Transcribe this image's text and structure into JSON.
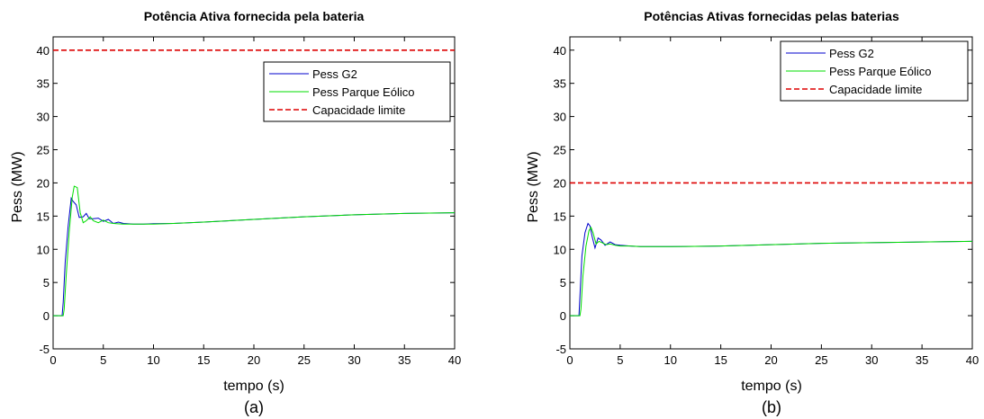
{
  "chart_data": [
    {
      "type": "line",
      "title": "Potência Ativa fornecida pela bateria",
      "xlabel": "tempo (s)",
      "ylabel": "Pess (MW)",
      "caption": "(a)",
      "xlim": [
        0,
        40
      ],
      "ylim": [
        -5,
        42
      ],
      "xticks": [
        0,
        5,
        10,
        15,
        20,
        25,
        30,
        35,
        40
      ],
      "yticks": [
        -5,
        0,
        5,
        10,
        15,
        20,
        25,
        30,
        35,
        40
      ],
      "grid": false,
      "legend_position": "top-right",
      "series": [
        {
          "name": "Pess G2",
          "color": "#0000cc",
          "style": "solid",
          "x": [
            0,
            0.9,
            1.0,
            1.2,
            1.5,
            1.8,
            2.0,
            2.3,
            2.6,
            3.0,
            3.3,
            3.6,
            4.0,
            4.5,
            5.0,
            5.5,
            6.0,
            6.5,
            7.0,
            8.0,
            9.0,
            10.0,
            12.0,
            15.0,
            20.0,
            25.0,
            30.0,
            35.0,
            40.0
          ],
          "y": [
            0,
            0,
            2,
            8,
            13.5,
            17.7,
            17.2,
            16.7,
            14.8,
            14.9,
            15.4,
            14.6,
            14.6,
            14.7,
            14.2,
            14.5,
            13.9,
            14.1,
            13.9,
            13.8,
            13.8,
            13.85,
            13.9,
            14.1,
            14.5,
            14.9,
            15.2,
            15.4,
            15.5
          ]
        },
        {
          "name": "Pess Parque Eólico",
          "color": "#00dd00",
          "style": "solid",
          "x": [
            0,
            1.0,
            1.1,
            1.3,
            1.6,
            1.9,
            2.1,
            2.4,
            2.7,
            3.0,
            3.3,
            3.7,
            4.0,
            4.5,
            5.0,
            5.5,
            6.0,
            7.0,
            8.0,
            10.0,
            12.0,
            15.0,
            20.0,
            25.0,
            30.0,
            35.0,
            40.0
          ],
          "y": [
            0,
            0,
            1,
            6,
            12.5,
            17.8,
            19.5,
            19.3,
            15.5,
            14.0,
            14.3,
            14.9,
            14.3,
            14.0,
            14.4,
            14.0,
            13.9,
            13.8,
            13.8,
            13.8,
            13.9,
            14.1,
            14.5,
            14.9,
            15.2,
            15.4,
            15.5
          ]
        },
        {
          "name": "Capacidade limite",
          "color": "#dd0000",
          "style": "dashed",
          "x": [
            0,
            40
          ],
          "y": [
            40,
            40
          ]
        }
      ]
    },
    {
      "type": "line",
      "title": "Potências Ativas fornecidas pelas baterias",
      "xlabel": "tempo (s)",
      "ylabel": "Pess (MW)",
      "caption": "(b)",
      "xlim": [
        0,
        40
      ],
      "ylim": [
        -5,
        42
      ],
      "xticks": [
        0,
        5,
        10,
        15,
        20,
        25,
        30,
        35,
        40
      ],
      "yticks": [
        -5,
        0,
        5,
        10,
        15,
        20,
        25,
        30,
        35,
        40
      ],
      "grid": false,
      "legend_position": "top-right",
      "series": [
        {
          "name": "Pess G2",
          "color": "#0000cc",
          "style": "solid",
          "x": [
            0,
            0.9,
            1.0,
            1.2,
            1.5,
            1.8,
            2.0,
            2.2,
            2.5,
            2.8,
            3.1,
            3.5,
            4.0,
            4.5,
            5.0,
            6.0,
            7.0,
            8.0,
            10.0,
            15.0,
            20.0,
            25.0,
            30.0,
            35.0,
            40.0
          ],
          "y": [
            0,
            0,
            3,
            9,
            12.5,
            13.9,
            13.5,
            12.0,
            10.2,
            11.7,
            11.4,
            10.6,
            11.1,
            10.7,
            10.6,
            10.5,
            10.4,
            10.4,
            10.4,
            10.5,
            10.7,
            10.9,
            11.0,
            11.1,
            11.2
          ]
        },
        {
          "name": "Pess Parque Eólico",
          "color": "#00dd00",
          "style": "solid",
          "x": [
            0,
            1.0,
            1.1,
            1.3,
            1.6,
            1.9,
            2.1,
            2.3,
            2.6,
            2.9,
            3.2,
            3.6,
            4.0,
            4.5,
            5.0,
            6.0,
            7.0,
            8.0,
            10.0,
            15.0,
            20.0,
            25.0,
            30.0,
            35.0,
            40.0
          ],
          "y": [
            0,
            0,
            1,
            6,
            10.5,
            12.8,
            13.3,
            12.5,
            10.8,
            11.2,
            11.0,
            10.7,
            10.8,
            10.6,
            10.5,
            10.5,
            10.4,
            10.4,
            10.4,
            10.5,
            10.7,
            10.9,
            11.0,
            11.1,
            11.2
          ]
        },
        {
          "name": "Capacidade limite",
          "color": "#dd0000",
          "style": "dashed",
          "x": [
            0,
            40
          ],
          "y": [
            20,
            20
          ]
        }
      ]
    }
  ]
}
